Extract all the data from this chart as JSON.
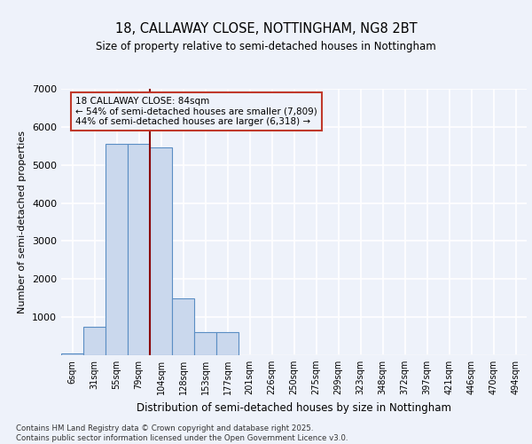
{
  "title1": "18, CALLAWAY CLOSE, NOTTINGHAM, NG8 2BT",
  "title2": "Size of property relative to semi-detached houses in Nottingham",
  "xlabel": "Distribution of semi-detached houses by size in Nottingham",
  "ylabel": "Number of semi-detached properties",
  "categories": [
    "6sqm",
    "31sqm",
    "55sqm",
    "79sqm",
    "104sqm",
    "128sqm",
    "153sqm",
    "177sqm",
    "201sqm",
    "226sqm",
    "250sqm",
    "275sqm",
    "299sqm",
    "323sqm",
    "348sqm",
    "372sqm",
    "397sqm",
    "421sqm",
    "446sqm",
    "470sqm",
    "494sqm"
  ],
  "values": [
    50,
    750,
    5550,
    5550,
    5450,
    1500,
    600,
    600,
    0,
    0,
    0,
    0,
    0,
    0,
    0,
    0,
    0,
    0,
    0,
    0,
    0
  ],
  "bar_color": "#cad8ed",
  "bar_edge_color": "#5b8ec4",
  "vline_color": "#8b0000",
  "vline_x": 3.5,
  "annotation_text": "18 CALLAWAY CLOSE: 84sqm\n← 54% of semi-detached houses are smaller (7,809)\n44% of semi-detached houses are larger (6,318) →",
  "annotation_box_color": "#c0392b",
  "ylim": [
    0,
    7000
  ],
  "yticks": [
    0,
    1000,
    2000,
    3000,
    4000,
    5000,
    6000,
    7000
  ],
  "footnote": "Contains HM Land Registry data © Crown copyright and database right 2025.\nContains public sector information licensed under the Open Government Licence v3.0.",
  "bg_color": "#eef2fa",
  "grid_color": "#ffffff"
}
